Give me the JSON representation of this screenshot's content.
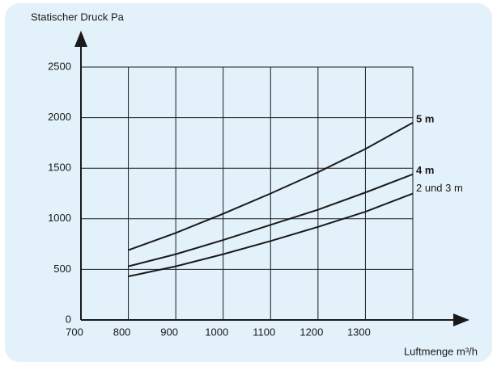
{
  "chart_data": {
    "type": "line",
    "y_label": "Statischer Druck Pa",
    "x_label": "Luftmenge m³/h",
    "x": [
      800,
      900,
      1000,
      1100,
      1200,
      1300,
      1400
    ],
    "series": [
      {
        "name": "5 m",
        "color": "#1a1a1a",
        "values": [
          690,
          860,
          1050,
          1250,
          1460,
          1690,
          1950
        ]
      },
      {
        "name": "4 m",
        "color": "#1a1a1a",
        "values": [
          530,
          650,
          790,
          940,
          1090,
          1260,
          1440
        ]
      },
      {
        "name": "2 und 3 m",
        "color": "#1a1a1a",
        "values": [
          430,
          530,
          650,
          780,
          920,
          1070,
          1250
        ]
      }
    ],
    "xlim": [
      700,
      1400
    ],
    "xticks": [
      700,
      800,
      900,
      1000,
      1100,
      1200,
      1300
    ],
    "ylim": [
      0,
      2500
    ],
    "yticks": [
      0,
      500,
      1000,
      1500,
      2000,
      2500
    ],
    "grid": true
  }
}
